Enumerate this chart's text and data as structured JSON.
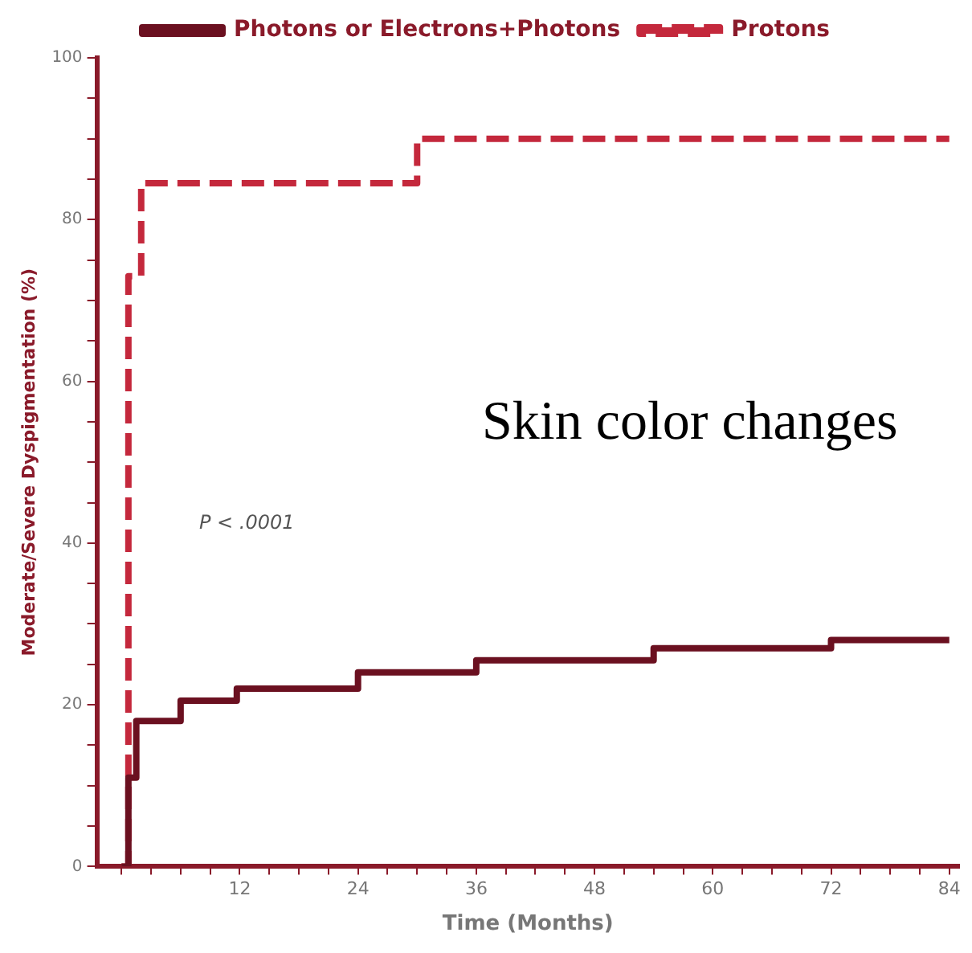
{
  "chart_data": {
    "type": "step",
    "xlabel": "Time (Months)",
    "ylabel": "Moderate/Severe Dyspigmentation (%)",
    "annotations": [
      "Skin color changes",
      "P < .0001"
    ],
    "series": [
      {
        "name": "Photons or Electrons+Photons",
        "color": "#6b1020",
        "line_style": "solid",
        "x": [
          0,
          0.7,
          1.5,
          6,
          11.7,
          24,
          36,
          54,
          72,
          84
        ],
        "values": [
          0,
          11,
          18,
          20.5,
          22,
          24,
          25.5,
          27,
          28,
          28
        ]
      },
      {
        "name": "Protons",
        "color": "#c4283c",
        "line_style": "dashed",
        "x": [
          0,
          0.7,
          2,
          30,
          84
        ],
        "values": [
          0,
          73,
          84.5,
          90,
          90
        ]
      }
    ],
    "xlim": [
      -2.5,
      85
    ],
    "xticks": [
      {
        "value": 0,
        "label": null
      },
      {
        "value": 3,
        "label": null
      },
      {
        "value": 6,
        "label": null
      },
      {
        "value": 9,
        "label": null
      },
      12,
      {
        "value": 15,
        "label": null
      },
      {
        "value": 18,
        "label": null
      },
      {
        "value": 21,
        "label": null
      },
      24,
      {
        "value": 27,
        "label": null
      },
      {
        "value": 30,
        "label": null
      },
      {
        "value": 33,
        "label": null
      },
      36,
      {
        "value": 39,
        "label": null
      },
      {
        "value": 42,
        "label": null
      },
      {
        "value": 45,
        "label": null
      },
      48,
      {
        "value": 51,
        "label": null
      },
      {
        "value": 54,
        "label": null
      },
      {
        "value": 57,
        "label": null
      },
      60,
      {
        "value": 63,
        "label": null
      },
      {
        "value": 66,
        "label": null
      },
      {
        "value": 69,
        "label": null
      },
      72,
      {
        "value": 75,
        "label": null
      },
      {
        "value": 78,
        "label": null
      },
      {
        "value": 81,
        "label": null
      },
      84
    ],
    "ylim": [
      0,
      100
    ],
    "yticks": [
      0,
      {
        "value": 5,
        "label": null
      },
      {
        "value": 10,
        "label": null
      },
      {
        "value": 15,
        "label": null
      },
      20,
      {
        "value": 25,
        "label": null
      },
      {
        "value": 30,
        "label": null
      },
      {
        "value": 35,
        "label": null
      },
      40,
      {
        "value": 45,
        "label": null
      },
      {
        "value": 50,
        "label": null
      },
      {
        "value": 55,
        "label": null
      },
      60,
      {
        "value": 65,
        "label": null
      },
      {
        "value": 70,
        "label": null
      },
      {
        "value": 75,
        "label": null
      },
      80,
      {
        "value": 85,
        "label": null
      },
      {
        "value": 90,
        "label": null
      },
      {
        "value": 95,
        "label": null
      },
      100
    ],
    "grid": false,
    "legend": "top",
    "marker": "none"
  }
}
